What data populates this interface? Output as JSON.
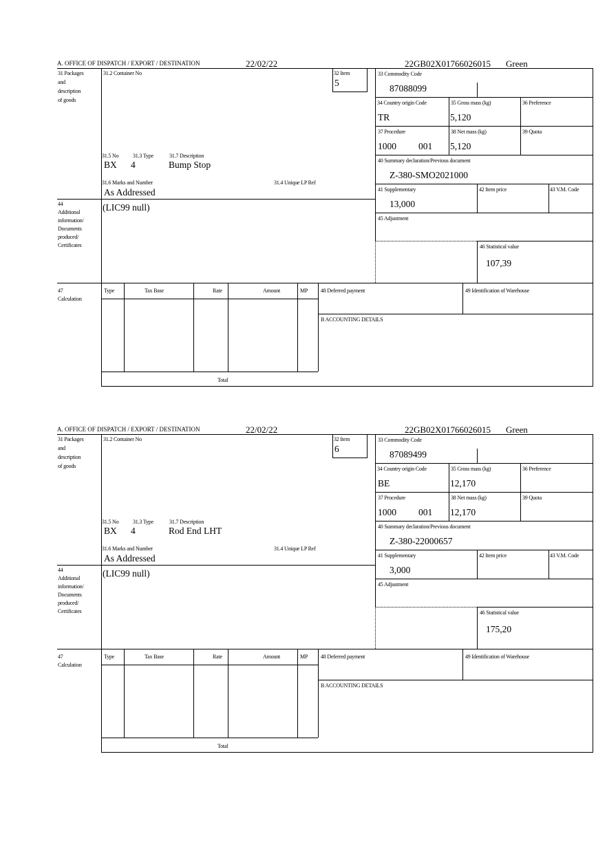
{
  "labels": {
    "office": "A.  OFFICE OF DISPATCH / EXPORT / DESTINATION",
    "l31": [
      "31 Packages",
      "and",
      "description",
      "of goods"
    ],
    "l31_2": "31.2 Container No",
    "l32": "32 Item",
    "l33": "33 Commodity Code",
    "l34": "34 Country origin Code",
    "l35": "35 Gross mass (kg)",
    "l36": "36 Preference",
    "l37": "37 Procedure",
    "l38": "38 Net mass (kg)",
    "l39": "39 Quota",
    "l40": "40 Summary declaration/Previous document",
    "l41": "41 Supplementary",
    "l42": "42 Item price",
    "l43": "43 V.M. Code",
    "l45": "45 Adjustment",
    "l46": "46 Statistical value",
    "l31_5": "31.5 No",
    "l31_3": "31.3 Type",
    "l31_7": "31.7 Description",
    "l31_6": "31.6 Marks and Number",
    "l31_4": "31.4 Unique LP Ref",
    "l44": [
      "44",
      "Additional",
      "information/",
      "Documents",
      "produced/",
      "Certificates"
    ],
    "l47": [
      "47",
      "Calculation"
    ],
    "calc_cols": [
      "Type",
      "Tax Base",
      "Rate",
      "Amount",
      "MP"
    ],
    "total": "Total",
    "l48": "48 Deferred payment",
    "l49": "49 Identification of Warehouse",
    "accounting": "B ACCOUNTING DETAILS"
  },
  "forms": [
    {
      "date": "22/02/22",
      "reference": "22GB02X01766026015",
      "route": "Green",
      "item": "5",
      "commodity_code": "87088099",
      "country_origin": "TR",
      "gross_mass": "5,120",
      "procedure": "1000",
      "procedure_add": "001",
      "net_mass": "5,120",
      "previous_document": "Z-380-SMO2021000",
      "supplementary": "13,000",
      "statistical_value": "107,39",
      "package_no": "BX",
      "package_type": "4",
      "description": "Bump Stop",
      "marks": "As Addressed",
      "additional_info": "(LIC99 null)"
    },
    {
      "date": "22/02/22",
      "reference": "22GB02X01766026015",
      "route": "Green",
      "item": "6",
      "commodity_code": "87089499",
      "country_origin": "BE",
      "gross_mass": "12,170",
      "procedure": "1000",
      "procedure_add": "001",
      "net_mass": "12,170",
      "previous_document": "Z-380-22000657",
      "supplementary": "3,000",
      "statistical_value": "175,20",
      "package_no": "BX",
      "package_type": "4",
      "description": "Rod End LHT",
      "marks": "As Addressed",
      "additional_info": "(LIC99 null)"
    }
  ]
}
